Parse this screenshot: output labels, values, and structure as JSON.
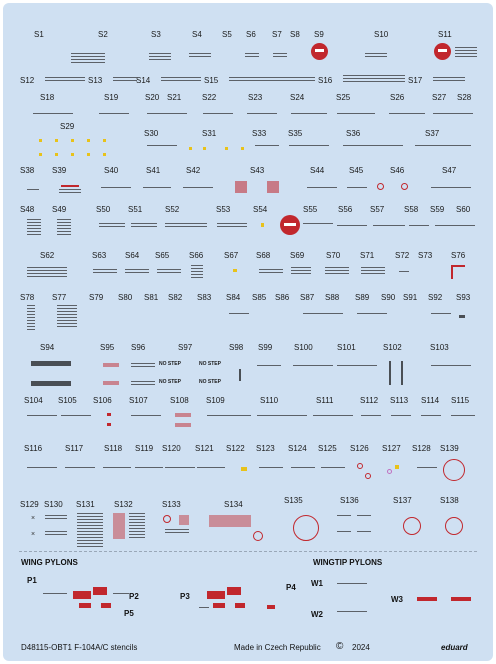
{
  "rows": [
    [
      [
        "S1",
        34,
        30
      ],
      [
        "S2",
        98,
        30
      ],
      [
        "S3",
        151,
        30
      ],
      [
        "S4",
        192,
        30
      ],
      [
        "S5",
        222,
        30
      ],
      [
        "S6",
        246,
        30
      ],
      [
        "S7",
        272,
        30
      ],
      [
        "S8",
        290,
        30
      ],
      [
        "S9",
        314,
        30
      ],
      [
        "S10",
        374,
        30
      ],
      [
        "S11",
        438,
        30
      ]
    ],
    [
      [
        "S12",
        20,
        76
      ],
      [
        "S13",
        88,
        76
      ],
      [
        "S14",
        136,
        76
      ],
      [
        "S15",
        204,
        76
      ],
      [
        "S16",
        318,
        76
      ],
      [
        "S17",
        408,
        76
      ]
    ],
    [
      [
        "S18",
        40,
        93
      ],
      [
        "S19",
        104,
        93
      ],
      [
        "S20",
        145,
        93
      ],
      [
        "S21",
        167,
        93
      ],
      [
        "S22",
        202,
        93
      ],
      [
        "S23",
        248,
        93
      ],
      [
        "S24",
        290,
        93
      ],
      [
        "S25",
        336,
        93
      ],
      [
        "S26",
        390,
        93
      ],
      [
        "S27",
        432,
        93
      ],
      [
        "S28",
        457,
        93
      ]
    ],
    [
      [
        "S29",
        60,
        122
      ]
    ],
    [
      [
        "S30",
        144,
        129
      ],
      [
        "S31",
        202,
        129
      ],
      [
        "S33",
        252,
        129
      ],
      [
        "S35",
        288,
        129
      ],
      [
        "S36",
        346,
        129
      ],
      [
        "S37",
        425,
        129
      ]
    ],
    [
      [
        "S38",
        20,
        166
      ],
      [
        "S39",
        52,
        166
      ],
      [
        "S40",
        104,
        166
      ],
      [
        "S41",
        146,
        166
      ],
      [
        "S42",
        186,
        166
      ],
      [
        "S43",
        250,
        166
      ],
      [
        "S44",
        310,
        166
      ],
      [
        "S45",
        349,
        166
      ],
      [
        "S46",
        390,
        166
      ],
      [
        "S47",
        442,
        166
      ]
    ],
    [
      [
        "S48",
        20,
        205
      ],
      [
        "S49",
        52,
        205
      ],
      [
        "S50",
        96,
        205
      ],
      [
        "S51",
        128,
        205
      ],
      [
        "S52",
        165,
        205
      ],
      [
        "S53",
        216,
        205
      ],
      [
        "S54",
        253,
        205
      ],
      [
        "S55",
        303,
        205
      ],
      [
        "S56",
        338,
        205
      ],
      [
        "S57",
        370,
        205
      ],
      [
        "S58",
        404,
        205
      ],
      [
        "S59",
        430,
        205
      ],
      [
        "S60",
        456,
        205
      ]
    ],
    [
      [
        "S62",
        40,
        251
      ],
      [
        "S63",
        92,
        251
      ],
      [
        "S64",
        125,
        251
      ],
      [
        "S65",
        155,
        251
      ],
      [
        "S66",
        189,
        251
      ],
      [
        "S67",
        224,
        251
      ],
      [
        "S68",
        256,
        251
      ],
      [
        "S69",
        290,
        251
      ],
      [
        "S70",
        326,
        251
      ],
      [
        "S71",
        360,
        251
      ],
      [
        "S72",
        395,
        251
      ],
      [
        "S73",
        418,
        251
      ],
      [
        "S76",
        451,
        251
      ]
    ],
    [
      [
        "S78",
        20,
        293
      ],
      [
        "S77",
        52,
        293
      ],
      [
        "S79",
        89,
        293
      ],
      [
        "S80",
        118,
        293
      ],
      [
        "S81",
        144,
        293
      ],
      [
        "S82",
        168,
        293
      ],
      [
        "S83",
        197,
        293
      ],
      [
        "S84",
        226,
        293
      ],
      [
        "S85",
        252,
        293
      ],
      [
        "S86",
        275,
        293
      ],
      [
        "S87",
        300,
        293
      ],
      [
        "S88",
        325,
        293
      ],
      [
        "S89",
        355,
        293
      ],
      [
        "S90",
        381,
        293
      ],
      [
        "S91",
        403,
        293
      ],
      [
        "S92",
        428,
        293
      ],
      [
        "S93",
        456,
        293
      ]
    ],
    [
      [
        "S94",
        40,
        343
      ],
      [
        "S95",
        100,
        343
      ],
      [
        "S96",
        131,
        343
      ],
      [
        "S97",
        178,
        343
      ],
      [
        "S98",
        229,
        343
      ],
      [
        "S99",
        258,
        343
      ],
      [
        "S100",
        294,
        343
      ],
      [
        "S101",
        337,
        343
      ],
      [
        "S102",
        383,
        343
      ],
      [
        "S103",
        430,
        343
      ]
    ],
    [
      [
        "S104",
        24,
        396
      ],
      [
        "S105",
        58,
        396
      ],
      [
        "S106",
        93,
        396
      ],
      [
        "S107",
        129,
        396
      ],
      [
        "S108",
        170,
        396
      ],
      [
        "S109",
        206,
        396
      ],
      [
        "S110",
        260,
        396
      ],
      [
        "S111",
        316,
        396
      ],
      [
        "S112",
        360,
        396
      ],
      [
        "S113",
        390,
        396
      ],
      [
        "S114",
        421,
        396
      ],
      [
        "S115",
        451,
        396
      ]
    ],
    [
      [
        "S116",
        24,
        444
      ],
      [
        "S117",
        65,
        444
      ],
      [
        "S118",
        104,
        444
      ],
      [
        "S119",
        135,
        444
      ],
      [
        "S120",
        162,
        444
      ],
      [
        "S121",
        195,
        444
      ],
      [
        "S122",
        226,
        444
      ],
      [
        "S123",
        256,
        444
      ],
      [
        "S124",
        288,
        444
      ],
      [
        "S125",
        318,
        444
      ],
      [
        "S126",
        350,
        444
      ],
      [
        "S127",
        382,
        444
      ],
      [
        "S128",
        412,
        444
      ],
      [
        "S139",
        440,
        444
      ]
    ],
    [
      [
        "S129",
        20,
        500
      ],
      [
        "S130",
        44,
        500
      ],
      [
        "S131",
        76,
        500
      ],
      [
        "S132",
        114,
        500
      ],
      [
        "S133",
        162,
        500
      ],
      [
        "S134",
        224,
        500
      ],
      [
        "S135",
        284,
        496
      ],
      [
        "S136",
        340,
        496
      ],
      [
        "S137",
        393,
        496
      ],
      [
        "S138",
        440,
        496
      ]
    ]
  ],
  "sections": {
    "wing_pylons": "WING PYLONS",
    "wingtip_pylons": "WINGTIP PYLONS"
  },
  "pylons": [
    [
      "P1",
      27,
      576
    ],
    [
      "P2",
      129,
      592
    ],
    [
      "P3",
      180,
      592
    ],
    [
      "P4",
      286,
      583
    ],
    [
      "P5",
      124,
      609
    ],
    [
      "W1",
      311,
      579
    ],
    [
      "W2",
      311,
      610
    ],
    [
      "W3",
      391,
      595
    ]
  ],
  "nostep": "NO STEP",
  "footer": {
    "left": "D48115-OBT1 F-104A/C stencils",
    "middle": "Made in Czech Republic",
    "copyright": "©",
    "year": "2024",
    "brand": "eduard"
  },
  "colors": {
    "background": "#cfe0f2",
    "stencil_red": "#c1272d",
    "stencil_yellow": "#e8c21a",
    "text": "#1a1a1a"
  }
}
